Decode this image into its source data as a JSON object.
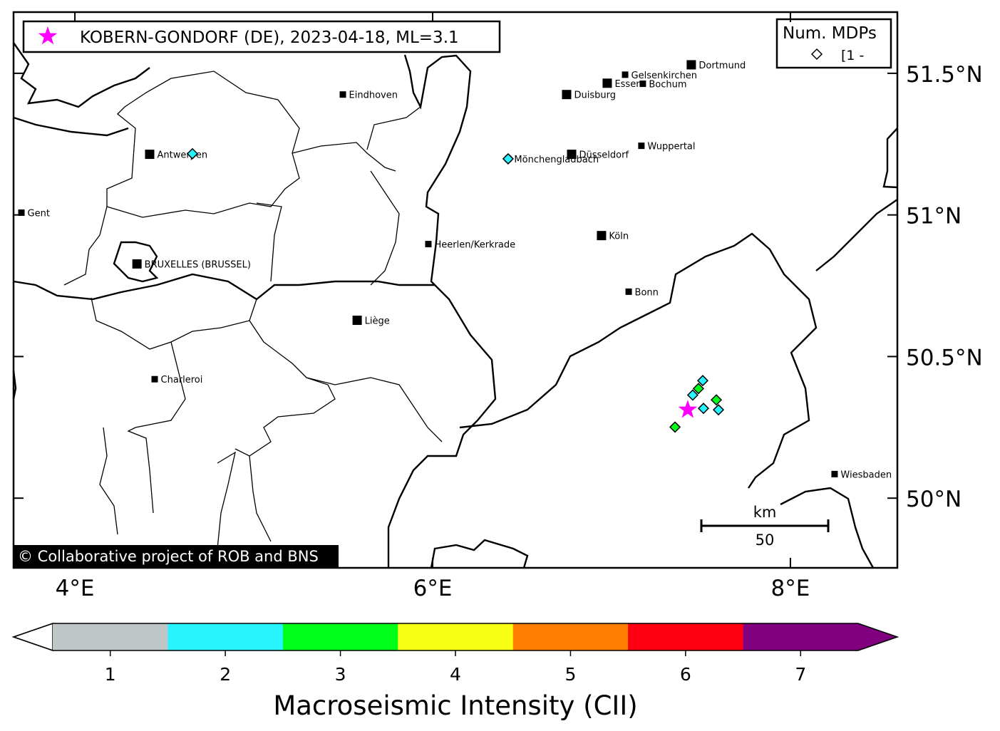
{
  "event": {
    "label": "KOBERN-GONDORF (DE), 2023-04-18, ML=3.1",
    "lon": 7.426,
    "lat": 50.312,
    "marker": "star-icon",
    "color": "#ff00ff"
  },
  "legend": {
    "title": "Num. MDPs",
    "entry_symbol": "diamond-icon",
    "entry_label": "[1 -"
  },
  "attribution": "© Collaborative project of ROB and BNS",
  "map_extent": {
    "lon": [
      3.657,
      8.598
    ],
    "lat": [
      49.754,
      51.716
    ]
  },
  "axes": {
    "lon_ticks": [
      {
        "value": 4,
        "label": "4°E"
      },
      {
        "value": 6,
        "label": "6°E"
      },
      {
        "value": 8,
        "label": "8°E"
      }
    ],
    "lat_ticks": [
      {
        "value": 51.5,
        "label": "51.5°N"
      },
      {
        "value": 51,
        "label": "51°N"
      },
      {
        "value": 50.5,
        "label": "50.5°N"
      },
      {
        "value": 50,
        "label": "50°N"
      }
    ]
  },
  "scale_bar": {
    "unit": "km",
    "value": "50"
  },
  "cities": [
    {
      "name": "Dortmund",
      "lon": 7.446,
      "lat": 51.53,
      "rank": "large"
    },
    {
      "name": "Gelsenkirchen",
      "lon": 7.076,
      "lat": 51.495,
      "rank": "small"
    },
    {
      "name": "Essen",
      "lon": 6.976,
      "lat": 51.465,
      "rank": "large"
    },
    {
      "name": "Bochum",
      "lon": 7.175,
      "lat": 51.463,
      "rank": "small"
    },
    {
      "name": "Duisburg",
      "lon": 6.749,
      "lat": 51.425,
      "rank": "large"
    },
    {
      "name": "Eindhoven",
      "lon": 5.498,
      "lat": 51.425,
      "rank": "small"
    },
    {
      "name": "Antwerpen",
      "lon": 4.418,
      "lat": 51.214,
      "rank": "large"
    },
    {
      "name": "Düsseldorf",
      "lon": 6.777,
      "lat": 51.214,
      "rank": "large"
    },
    {
      "name": "Wuppertal",
      "lon": 7.167,
      "lat": 51.244,
      "rank": "small"
    },
    {
      "name": "Mönchengladbach",
      "lon": 6.422,
      "lat": 51.198,
      "rank": "small"
    },
    {
      "name": "Gent",
      "lon": 3.701,
      "lat": 51.008,
      "rank": "small"
    },
    {
      "name": "Köln",
      "lon": 6.944,
      "lat": 50.927,
      "rank": "large"
    },
    {
      "name": "Heerlen/Kerkrade",
      "lon": 5.976,
      "lat": 50.897,
      "rank": "small"
    },
    {
      "name": "BRUXELLES (BRUSSEL)",
      "lon": 4.347,
      "lat": 50.827,
      "rank": "large"
    },
    {
      "name": "Bonn",
      "lon": 7.096,
      "lat": 50.729,
      "rank": "small"
    },
    {
      "name": "Liège",
      "lon": 5.578,
      "lat": 50.628,
      "rank": "large"
    },
    {
      "name": "Charleroi",
      "lon": 4.446,
      "lat": 50.42,
      "rank": "small"
    },
    {
      "name": "Wiesbaden",
      "lon": 8.247,
      "lat": 50.085,
      "rank": "small"
    }
  ],
  "mdps": [
    {
      "lon": 7.51,
      "lat": 50.415,
      "intensity": 2
    },
    {
      "lon": 7.486,
      "lat": 50.387,
      "intensity": 3
    },
    {
      "lon": 7.454,
      "lat": 50.364,
      "intensity": 2
    },
    {
      "lon": 7.514,
      "lat": 50.317,
      "intensity": 2
    },
    {
      "lon": 7.586,
      "lat": 50.347,
      "intensity": 3
    },
    {
      "lon": 7.598,
      "lat": 50.312,
      "intensity": 2
    },
    {
      "lon": 7.355,
      "lat": 50.251,
      "intensity": 3
    },
    {
      "lon": 4.657,
      "lat": 51.216,
      "intensity": 2
    },
    {
      "lon": 6.422,
      "lat": 51.198,
      "intensity": 2
    }
  ],
  "colorbar": {
    "label": "Macroseismic Intensity (CII)",
    "ticks": [
      "1",
      "2",
      "3",
      "4",
      "5",
      "6",
      "7"
    ],
    "colors": [
      "#c0c6c8",
      "#27f4ff",
      "#00ff18",
      "#f7ff13",
      "#ff7d00",
      "#ff0012",
      "#800080"
    ],
    "under_color": "#ffffff"
  }
}
